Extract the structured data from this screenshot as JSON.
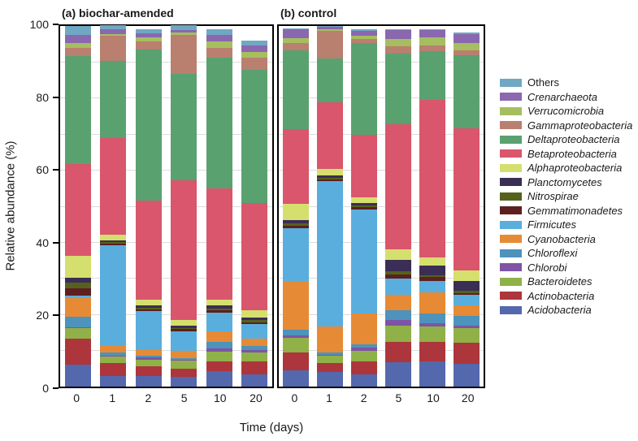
{
  "chart_data": {
    "type": "bar",
    "stacked": true,
    "title": "",
    "xlabel": "Time (days)",
    "ylabel": "Relative abundance (%)",
    "ylim": [
      0,
      100
    ],
    "yticks": [
      0,
      20,
      40,
      60,
      80,
      100
    ],
    "gridline_step": 10,
    "grid": "on",
    "legend_position": "right",
    "categories": [
      "0",
      "1",
      "2",
      "5",
      "10",
      "20"
    ],
    "stack_order_bottom_to_top": [
      "Acidobacteria",
      "Actinobacteria",
      "Bacteroidetes",
      "Chlorobi",
      "Chloroflexi",
      "Cyanobacteria",
      "Firmicutes",
      "Gemmatimonadetes",
      "Nitrospirae",
      "Planctomycetes",
      "Alphaproteobacteria",
      "Betaproteobacteria",
      "Deltaproteobacteria",
      "Gammaproteobacteria",
      "Verrucomicrobia",
      "Crenarchaeota",
      "Others"
    ],
    "colors": {
      "Others": "#6FA8C3",
      "Crenarchaeota": "#8A67AF",
      "Verrucomicrobia": "#A6BE5F",
      "Gammaproteobacteria": "#B97F6F",
      "Deltaproteobacteria": "#5AA170",
      "Betaproteobacteria": "#D9566C",
      "Alphaproteobacteria": "#D5DF6E",
      "Planctomycetes": "#3A2E55",
      "Nitrospirae": "#55611C",
      "Gemmatimonadetes": "#5E1F20",
      "Firmicutes": "#59AEDE",
      "Cyanobacteria": "#E68A35",
      "Chloroflexi": "#4D93BB",
      "Chlorobi": "#7E54A4",
      "Bacteroidetes": "#8FB148",
      "Actinobacteria": "#AC363B",
      "Acidobacteria": "#5468AE"
    },
    "legend": [
      {
        "label": "Others",
        "italic": false
      },
      {
        "label": "Crenarchaeota",
        "italic": true
      },
      {
        "label": "Verrucomicrobia",
        "italic": true
      },
      {
        "label": "Gammaproteobacteria",
        "italic": true
      },
      {
        "label": "Deltaproteobacteria",
        "italic": true
      },
      {
        "label": "Betaproteobacteria",
        "italic": true
      },
      {
        "label": "Alphaproteobacteria",
        "italic": true
      },
      {
        "label": "Planctomycetes",
        "italic": true
      },
      {
        "label": "Nitrospirae",
        "italic": true
      },
      {
        "label": "Gemmatimonadetes",
        "italic": true
      },
      {
        "label": "Firmicutes",
        "italic": true
      },
      {
        "label": "Cyanobacteria",
        "italic": true
      },
      {
        "label": "Chloroflexi",
        "italic": true
      },
      {
        "label": "Chlorobi",
        "italic": true
      },
      {
        "label": "Bacteroidetes",
        "italic": true
      },
      {
        "label": "Actinobacteria",
        "italic": true
      },
      {
        "label": "Acidobacteria",
        "italic": true
      }
    ],
    "panels": [
      {
        "label": "(a) biochar-amended",
        "series": [
          {
            "name": "Acidobacteria",
            "values": [
              6.0,
              3.0,
              3.0,
              2.7,
              4.2,
              3.3
            ]
          },
          {
            "name": "Actinobacteria",
            "values": [
              7.3,
              3.5,
              2.6,
              2.2,
              2.8,
              3.6
            ]
          },
          {
            "name": "Bacteroidetes",
            "values": [
              3.0,
              1.8,
              1.9,
              2.2,
              2.8,
              2.6
            ]
          },
          {
            "name": "Chlorobi",
            "values": [
              0.2,
              0.3,
              0.7,
              0.3,
              0.8,
              0.6
            ]
          },
          {
            "name": "Chloroflexi",
            "values": [
              2.8,
              0.8,
              0.3,
              0.5,
              1.8,
              1.1
            ]
          },
          {
            "name": "Cyanobacteria",
            "values": [
              5.2,
              2.2,
              1.6,
              2.0,
              3.0,
              2.0
            ]
          },
          {
            "name": "Firmicutes",
            "values": [
              0.8,
              27.5,
              10.9,
              5.5,
              5.2,
              4.1
            ]
          },
          {
            "name": "Gemmatimonadetes",
            "values": [
              2.0,
              0.5,
              0.5,
              0.5,
              0.6,
              0.6
            ]
          },
          {
            "name": "Nitrospirae",
            "values": [
              1.5,
              0.4,
              0.4,
              0.4,
              0.5,
              0.5
            ]
          },
          {
            "name": "Planctomycetes",
            "values": [
              1.4,
              0.6,
              0.6,
              0.7,
              0.9,
              0.8
            ]
          },
          {
            "name": "Alphaproteobacteria",
            "values": [
              6.0,
              1.6,
              1.6,
              1.5,
              1.6,
              1.9
            ]
          },
          {
            "name": "Betaproteobacteria",
            "values": [
              25.5,
              26.8,
              27.4,
              38.7,
              30.8,
              29.8
            ]
          },
          {
            "name": "Deltaproteobacteria",
            "values": [
              30.0,
              21.3,
              42.0,
              29.5,
              36.3,
              37.0
            ]
          },
          {
            "name": "Gammaproteobacteria",
            "values": [
              2.2,
              6.9,
              2.2,
              10.8,
              2.6,
              3.3
            ]
          },
          {
            "name": "Verrucomicrobia",
            "values": [
              1.4,
              0.6,
              1.1,
              0.7,
              1.9,
              1.7
            ]
          },
          {
            "name": "Crenarchaeota",
            "values": [
              2.2,
              1.2,
              1.1,
              0.6,
              1.8,
              1.7
            ]
          },
          {
            "name": "Others",
            "values": [
              2.4,
              1.2,
              1.2,
              1.5,
              1.6,
              1.4
            ]
          }
        ]
      },
      {
        "label": "(b) control",
        "series": [
          {
            "name": "Acidobacteria",
            "values": [
              4.4,
              4.0,
              3.3,
              6.7,
              7.0,
              6.4
            ]
          },
          {
            "name": "Actinobacteria",
            "values": [
              5.0,
              2.6,
              3.6,
              5.8,
              5.3,
              5.7
            ]
          },
          {
            "name": "Bacteroidetes",
            "values": [
              4.1,
              1.9,
              3.1,
              4.5,
              4.3,
              4.1
            ]
          },
          {
            "name": "Chlorobi",
            "values": [
              0.8,
              0.2,
              0.9,
              1.5,
              1.0,
              0.7
            ]
          },
          {
            "name": "Chloroflexi",
            "values": [
              1.5,
              0.7,
              0.9,
              2.6,
              2.7,
              2.6
            ]
          },
          {
            "name": "Cyanobacteria",
            "values": [
              13.5,
              7.3,
              8.4,
              4.3,
              5.8,
              3.1
            ]
          },
          {
            "name": "Firmicutes",
            "values": [
              14.7,
              40.3,
              28.9,
              4.5,
              3.2,
              2.9
            ]
          },
          {
            "name": "Gemmatimonadetes",
            "values": [
              0.7,
              0.5,
              0.7,
              1.1,
              1.0,
              0.5
            ]
          },
          {
            "name": "Nitrospirae",
            "values": [
              0.6,
              0.4,
              0.4,
              1.0,
              0.5,
              0.6
            ]
          },
          {
            "name": "Planctomycetes",
            "values": [
              0.9,
              0.6,
              0.6,
              3.1,
              2.7,
              2.7
            ]
          },
          {
            "name": "Alphaproteobacteria",
            "values": [
              4.4,
              1.8,
              1.7,
              3.0,
              2.4,
              3.0
            ]
          },
          {
            "name": "Betaproteobacteria",
            "values": [
              20.9,
              18.6,
              17.3,
              34.6,
              43.6,
              39.3
            ]
          },
          {
            "name": "Deltaproteobacteria",
            "values": [
              21.7,
              12.2,
              25.4,
              19.6,
              13.6,
              20.3
            ]
          },
          {
            "name": "Gammaproteobacteria",
            "values": [
              2.0,
              7.5,
              1.2,
              2.1,
              1.5,
              1.4
            ]
          },
          {
            "name": "Verrucomicrobia",
            "values": [
              1.4,
              0.5,
              0.9,
              2.1,
              2.2,
              1.9
            ]
          },
          {
            "name": "Crenarchaeota",
            "values": [
              2.4,
              0.8,
              1.4,
              2.4,
              2.1,
              2.6
            ]
          },
          {
            "name": "Others",
            "values": [
              0.3,
              0.2,
              0.5,
              0.2,
              0.2,
              0.3
            ]
          }
        ]
      }
    ]
  }
}
